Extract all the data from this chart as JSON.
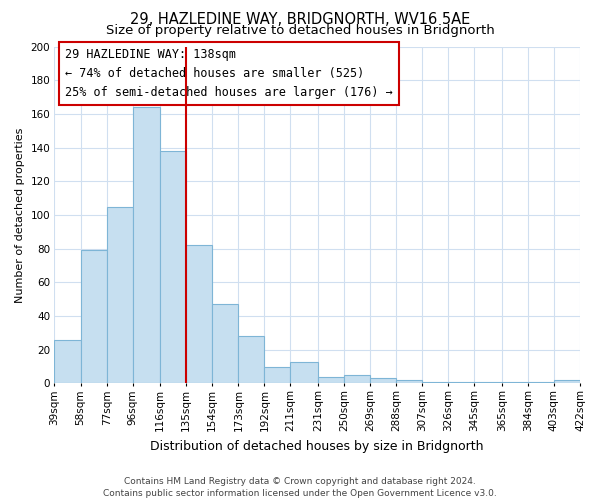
{
  "title": "29, HAZLEDINE WAY, BRIDGNORTH, WV16 5AE",
  "subtitle": "Size of property relative to detached houses in Bridgnorth",
  "xlabel": "Distribution of detached houses by size in Bridgnorth",
  "ylabel": "Number of detached properties",
  "bar_color": "#c6dff0",
  "bar_edge_color": "#7eb5d6",
  "background_color": "#ffffff",
  "grid_color": "#d0dff0",
  "property_line_x": 135,
  "property_line_color": "#cc0000",
  "annotation_line1": "29 HAZLEDINE WAY: 138sqm",
  "annotation_line2": "← 74% of detached houses are smaller (525)",
  "annotation_line3": "25% of semi-detached houses are larger (176) →",
  "annotation_box_color": "#ffffff",
  "annotation_box_edge_color": "#cc0000",
  "bin_edges": [
    39,
    58,
    77,
    96,
    116,
    135,
    154,
    173,
    192,
    211,
    231,
    250,
    269,
    288,
    307,
    326,
    345,
    365,
    384,
    403,
    422
  ],
  "bin_counts": [
    26,
    79,
    105,
    164,
    138,
    82,
    47,
    28,
    10,
    13,
    4,
    5,
    3,
    2,
    1,
    1,
    1,
    1,
    1,
    2
  ],
  "ylim": [
    0,
    200
  ],
  "yticks": [
    0,
    20,
    40,
    60,
    80,
    100,
    120,
    140,
    160,
    180,
    200
  ],
  "footer_text": "Contains HM Land Registry data © Crown copyright and database right 2024.\nContains public sector information licensed under the Open Government Licence v3.0.",
  "title_fontsize": 10.5,
  "subtitle_fontsize": 9.5,
  "xlabel_fontsize": 9,
  "ylabel_fontsize": 8,
  "tick_fontsize": 7.5,
  "annotation_fontsize": 8.5,
  "footer_fontsize": 6.5
}
